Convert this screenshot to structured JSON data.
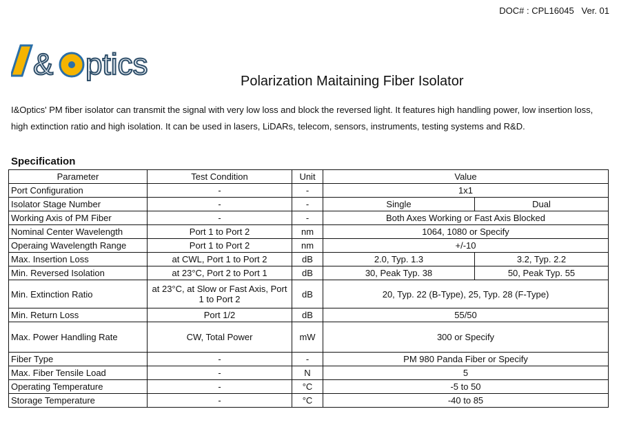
{
  "doc": "DOC# : CPL16045   Ver. 01",
  "logo_text": "I&Optics",
  "title": "Polarization Maitaining Fiber Isolator",
  "intro": "I&Optics' PM fiber isolator can transmit the signal with very low loss and block the reversed light. It features high handling power, low insertion loss, high extinction ratio and high isolation. It can be used in lasers, LiDARs, telecom, sensors, instruments, testing systems and R&D.",
  "spec_heading": "Specification",
  "header": [
    "Parameter",
    "Test Condition",
    "Unit",
    "Value"
  ],
  "rows": [
    {
      "p": "Port Configuration",
      "c": "-",
      "u": "-",
      "v": [
        "1x1"
      ]
    },
    {
      "p": "Isolator Stage Number",
      "c": "-",
      "u": "-",
      "v": [
        "Single",
        "Dual"
      ]
    },
    {
      "p": "Working Axis of PM Fiber",
      "c": "-",
      "u": "-",
      "v": [
        "Both Axes Working or Fast Axis Blocked"
      ]
    },
    {
      "p": "Nominal Center Wavelength",
      "c": "Port 1 to Port 2",
      "u": "nm",
      "v": [
        "1064, 1080 or Specify"
      ]
    },
    {
      "p": "Operaing Wavelength Range",
      "c": "Port 1 to Port 2",
      "u": "nm",
      "v": [
        "+/-10"
      ]
    },
    {
      "p": "Max. Insertion Loss",
      "c": "at CWL, Port 1 to Port 2",
      "u": "dB",
      "v": [
        "2.0, Typ. 1.3",
        "3.2, Typ. 2.2"
      ]
    },
    {
      "p": "Min. Reversed Isolation",
      "c": "at 23°C, Port 2 to Port 1",
      "u": "dB",
      "v": [
        "30, Peak Typ. 38",
        "50, Peak Typ. 55"
      ]
    },
    {
      "p": "Min. Extinction Ratio",
      "c": "at 23°C, at Slow or Fast Axis, Port 1 to Port 2",
      "u": "dB",
      "v": [
        "20, Typ. 22 (B-Type), 25, Typ. 28 (F-Type)"
      ]
    },
    {
      "p": "Min. Return Loss",
      "c": "Port 1/2",
      "u": "dB",
      "v": [
        "55/50"
      ]
    },
    {
      "p": "Max. Power Handling Rate",
      "c": "CW, Total Power",
      "u": "mW",
      "v": [
        "300 or Specify"
      ]
    },
    {
      "p": "Fiber Type",
      "c": "-",
      "u": "-",
      "v": [
        "PM 980 Panda Fiber or Specify"
      ]
    },
    {
      "p": "Max. Fiber Tensile Load",
      "c": "-",
      "u": "N",
      "v": [
        "5"
      ]
    },
    {
      "p": "Operating Temperature",
      "c": "-",
      "u": "°C",
      "v": [
        "-5 to 50"
      ]
    },
    {
      "p": "Storage Temperature",
      "c": "-",
      "u": "°C",
      "v": [
        "-40 to 85"
      ]
    }
  ]
}
